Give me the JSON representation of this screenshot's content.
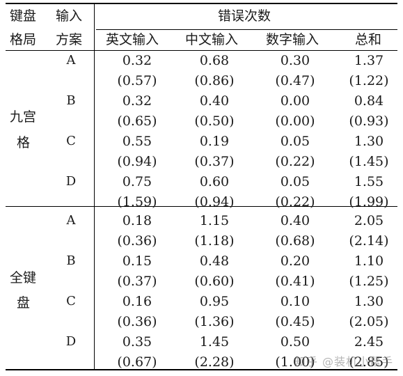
{
  "header": {
    "layout_line1": "键盘",
    "layout_line2": "格局",
    "scheme_line1": "输入",
    "scheme_line2": "方案",
    "group": "错误次数",
    "cols": [
      "英文输入",
      "中文输入",
      "数字输入",
      "总和"
    ]
  },
  "sections": [
    {
      "label_line1": "九宫",
      "label_line2": "格",
      "rows": [
        {
          "scheme": "A",
          "means": [
            "0.32",
            "0.68",
            "0.30",
            "1.37"
          ],
          "sds": [
            "(0.57)",
            "(0.86)",
            "(0.47)",
            "(1.22)"
          ]
        },
        {
          "scheme": "B",
          "means": [
            "0.32",
            "0.40",
            "0.00",
            "0.84"
          ],
          "sds": [
            "(0.65)",
            "(0.50)",
            "(0.00)",
            "(0.93)"
          ]
        },
        {
          "scheme": "C",
          "means": [
            "0.55",
            "0.19",
            "0.05",
            "1.30"
          ],
          "sds": [
            "(0.94)",
            "(0.37)",
            "(0.22)",
            "(1.45)"
          ]
        },
        {
          "scheme": "D",
          "means": [
            "0.75",
            "0.60",
            "0.05",
            "1.55"
          ],
          "sds": [
            "(1.59)",
            "(0.94)",
            "(0.22)",
            "(1.99)"
          ]
        }
      ]
    },
    {
      "label_line1": "全键",
      "label_line2": "盘",
      "rows": [
        {
          "scheme": "A",
          "means": [
            "0.18",
            "1.15",
            "0.40",
            "2.05"
          ],
          "sds": [
            "(0.36)",
            "(1.18)",
            "(0.68)",
            "(2.14)"
          ]
        },
        {
          "scheme": "B",
          "means": [
            "0.15",
            "0.48",
            "0.20",
            "1.10"
          ],
          "sds": [
            "(0.37)",
            "(0.60)",
            "(0.41)",
            "(1.25)"
          ]
        },
        {
          "scheme": "C",
          "means": [
            "0.16",
            "0.95",
            "0.10",
            "1.30"
          ],
          "sds": [
            "(0.36)",
            "(1.36)",
            "(0.45)",
            "(2.05)"
          ]
        },
        {
          "scheme": "D",
          "means": [
            "0.35",
            "1.45",
            "0.50",
            "2.45"
          ],
          "sds": [
            "(0.67)",
            "(2.28)",
            "(1.00)",
            "(2.85)"
          ]
        }
      ]
    }
  ],
  "watermark": "知乎 @装机小帮手"
}
